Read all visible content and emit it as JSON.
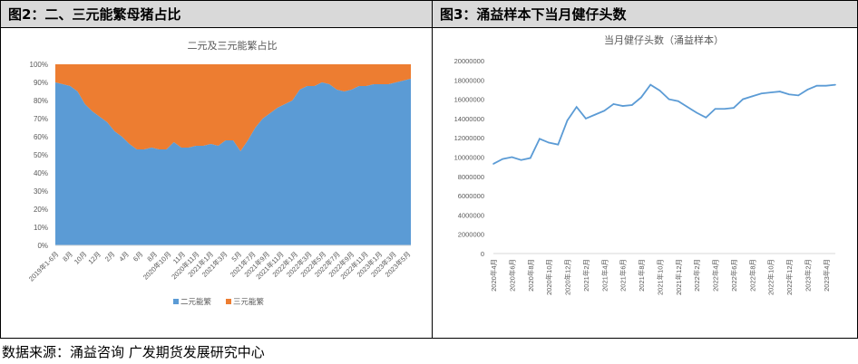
{
  "figures": {
    "left_title": "图2：二、三元能繁母猪占比",
    "right_title": "图3：涌益样本下当月健仔头数"
  },
  "source_note": "数据来源：涌益咨询 广发期货发展研究中心",
  "colors": {
    "series_blue": "#5b9bd5",
    "series_orange": "#ed7d31",
    "axis_text": "#595959",
    "panel_header_bg": "#d9d9d9"
  },
  "chart_data": [
    {
      "type": "area",
      "stacked": true,
      "percent": true,
      "title": "二元及三元能繁占比",
      "ylim": [
        0,
        100
      ],
      "yticks": [
        "0%",
        "10%",
        "20%",
        "30%",
        "40%",
        "50%",
        "60%",
        "70%",
        "80%",
        "90%",
        "100%"
      ],
      "xtick_labels": [
        "2019年1-6月",
        "8月",
        "10月",
        "12月",
        "2月",
        "4月",
        "6月",
        "8月",
        "2020年10月",
        "11月",
        "2020年11月",
        "2021年1月",
        "2021年3月",
        "5月",
        "2021年7月",
        "2021年9月",
        "2021年11月",
        "2022年1月",
        "2022年3月",
        "2022年5月",
        "2022年7月",
        "2022年9月",
        "2022年11月",
        "2023年1月",
        "2023年3月",
        "2023年5月"
      ],
      "series": [
        {
          "name": "二元能繁",
          "values": [
            90,
            89,
            88,
            85,
            78,
            74,
            71,
            68,
            63,
            60,
            56,
            53,
            53,
            54,
            53,
            53,
            57,
            54,
            54,
            55,
            55,
            56,
            55,
            58,
            58,
            52,
            58,
            65,
            70,
            73,
            76,
            78,
            80,
            86,
            88,
            88,
            90,
            89,
            86,
            85,
            86,
            88,
            88,
            89,
            89,
            89,
            90,
            91,
            92
          ]
        },
        {
          "name": "三元能繁",
          "values": [
            10,
            11,
            12,
            15,
            22,
            26,
            29,
            32,
            37,
            40,
            44,
            47,
            47,
            46,
            47,
            47,
            43,
            46,
            46,
            45,
            45,
            44,
            45,
            42,
            42,
            48,
            42,
            35,
            30,
            27,
            24,
            22,
            20,
            14,
            12,
            12,
            10,
            11,
            14,
            15,
            14,
            12,
            12,
            11,
            11,
            11,
            10,
            9,
            8
          ]
        }
      ],
      "legend_position": "bottom"
    },
    {
      "type": "line",
      "title": "当月健仔头数（涌益样本）",
      "ylim": [
        0,
        20000000
      ],
      "yticks": [
        "0",
        "2000000",
        "4000000",
        "6000000",
        "8000000",
        "10000000",
        "12000000",
        "14000000",
        "16000000",
        "18000000",
        "20000000"
      ],
      "x": [
        "2020年4月",
        "2020年5月",
        "2020年6月",
        "2020年7月",
        "2020年8月",
        "2020年9月",
        "2020年10月",
        "2020年11月",
        "2020年12月",
        "2021年1月",
        "2021年2月",
        "2021年3月",
        "2021年4月",
        "2021年5月",
        "2021年6月",
        "2021年7月",
        "2021年8月",
        "2021年9月",
        "2021年10月",
        "2021年11月",
        "2021年12月",
        "2022年1月",
        "2022年2月",
        "2022年3月",
        "2022年4月",
        "2022年5月",
        "2022年6月",
        "2022年7月",
        "2022年8月",
        "2022年9月",
        "2022年10月",
        "2022年11月",
        "2022年12月",
        "2023年1月",
        "2023年2月",
        "2023年3月",
        "2023年4月",
        "2023年5月"
      ],
      "xtick_labels": [
        "2020年4月",
        "2020年6月",
        "2020年8月",
        "2020年10月",
        "2020年12月",
        "2021年2月",
        "2021年4月",
        "2021年6月",
        "2021年8月",
        "2021年10月",
        "2021年12月",
        "2022年2月",
        "2022年4月",
        "2022年6月",
        "2022年8月",
        "2022年10月",
        "2022年12月",
        "2023年2月",
        "2023年4月"
      ],
      "series": [
        {
          "values": [
            9300000,
            9800000,
            10000000,
            9700000,
            9900000,
            11900000,
            11500000,
            11300000,
            13800000,
            15200000,
            14000000,
            14400000,
            14800000,
            15500000,
            15300000,
            15400000,
            16200000,
            17500000,
            16900000,
            16000000,
            15800000,
            15200000,
            14600000,
            14100000,
            15000000,
            15000000,
            15100000,
            16000000,
            16300000,
            16600000,
            16700000,
            16800000,
            16500000,
            16400000,
            17000000,
            17400000,
            17400000,
            17500000
          ]
        }
      ],
      "grid": false
    }
  ]
}
